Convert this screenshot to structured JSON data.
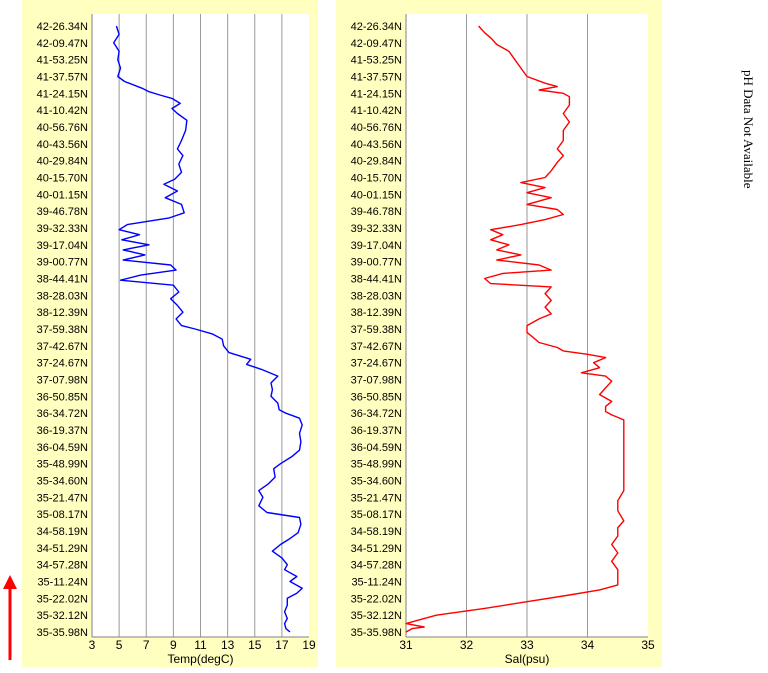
{
  "side_note": "pH Data Not Available",
  "colors": {
    "panel_bg": "#ffffc0",
    "plot_bg": "#ffffff",
    "grid": "#9a9a9a",
    "temp_line": "#0000ff",
    "sal_line": "#ff0000",
    "arrow": "#ff0000"
  },
  "chart_data": [
    {
      "type": "line",
      "orientation": "vertical-profile",
      "xlabel": "Temp(degC)",
      "xlim": [
        3,
        19
      ],
      "xticks": [
        "3",
        "5",
        "7",
        "9",
        "11",
        "13",
        "15",
        "17",
        "19"
      ],
      "y_labels": [
        "42-26.34N",
        "42-09.47N",
        "41-53.25N",
        "41-37.57N",
        "41-24.15N",
        "41-10.42N",
        "40-56.76N",
        "40-43.56N",
        "40-29.84N",
        "40-15.70N",
        "40-01.15N",
        "39-46.78N",
        "39-32.33N",
        "39-17.04N",
        "39-00.77N",
        "38-44.41N",
        "38-28.03N",
        "38-12.39N",
        "37-59.38N",
        "37-42.67N",
        "37-24.67N",
        "37-07.98N",
        "36-50.85N",
        "36-34.72N",
        "36-19.37N",
        "36-04.59N",
        "35-48.99N",
        "35-34.60N",
        "35-21.47N",
        "35-08.17N",
        "34-58.19N",
        "34-51.29N",
        "34-57.28N",
        "35-11.24N",
        "35-22.02N",
        "35-32.12N",
        "35-35.98N"
      ],
      "grid": "vertical",
      "series": [
        {
          "color": "#0000ff",
          "points": [
            [
              4.8,
              0
            ],
            [
              5.0,
              0.5
            ],
            [
              4.6,
              1.0
            ],
            [
              5.0,
              1.5
            ],
            [
              4.9,
              2.0
            ],
            [
              5.1,
              2.5
            ],
            [
              4.9,
              3.0
            ],
            [
              5.4,
              3.3
            ],
            [
              6.7,
              3.7
            ],
            [
              7.2,
              3.9
            ],
            [
              8.0,
              4.1
            ],
            [
              8.9,
              4.3
            ],
            [
              9.5,
              4.6
            ],
            [
              8.9,
              4.9
            ],
            [
              9.3,
              5.2
            ],
            [
              10.0,
              5.6
            ],
            [
              9.9,
              6.2
            ],
            [
              9.6,
              6.8
            ],
            [
              9.3,
              7.3
            ],
            [
              9.7,
              7.7
            ],
            [
              9.4,
              8.2
            ],
            [
              9.6,
              8.7
            ],
            [
              9.1,
              9.1
            ],
            [
              8.3,
              9.4
            ],
            [
              9.3,
              9.8
            ],
            [
              8.4,
              10.2
            ],
            [
              9.6,
              10.6
            ],
            [
              9.8,
              11.1
            ],
            [
              8.7,
              11.4
            ],
            [
              5.6,
              11.8
            ],
            [
              5.0,
              12.1
            ],
            [
              6.5,
              12.4
            ],
            [
              5.2,
              12.7
            ],
            [
              7.2,
              13.0
            ],
            [
              5.3,
              13.3
            ],
            [
              6.9,
              13.6
            ],
            [
              5.3,
              13.9
            ],
            [
              8.8,
              14.2
            ],
            [
              9.2,
              14.5
            ],
            [
              6.6,
              14.8
            ],
            [
              5.1,
              15.1
            ],
            [
              9.0,
              15.4
            ],
            [
              9.4,
              15.8
            ],
            [
              8.8,
              16.2
            ],
            [
              9.3,
              16.6
            ],
            [
              9.7,
              17.0
            ],
            [
              9.2,
              17.4
            ],
            [
              9.6,
              17.8
            ],
            [
              10.6,
              18.0
            ],
            [
              11.9,
              18.3
            ],
            [
              12.6,
              18.6
            ],
            [
              12.7,
              19.0
            ],
            [
              13.1,
              19.4
            ],
            [
              14.7,
              19.8
            ],
            [
              14.4,
              20.1
            ],
            [
              15.5,
              20.4
            ],
            [
              16.7,
              20.8
            ],
            [
              16.2,
              21.2
            ],
            [
              16.3,
              21.6
            ],
            [
              16.2,
              22.0
            ],
            [
              16.7,
              22.4
            ],
            [
              16.8,
              22.8
            ],
            [
              17.3,
              23.0
            ],
            [
              18.3,
              23.3
            ],
            [
              18.5,
              23.7
            ],
            [
              18.3,
              24.2
            ],
            [
              18.4,
              24.7
            ],
            [
              18.3,
              25.2
            ],
            [
              17.7,
              25.6
            ],
            [
              16.9,
              26.0
            ],
            [
              16.4,
              26.3
            ],
            [
              16.5,
              26.8
            ],
            [
              16.0,
              27.2
            ],
            [
              15.3,
              27.6
            ],
            [
              15.6,
              28.0
            ],
            [
              15.3,
              28.5
            ],
            [
              15.9,
              28.9
            ],
            [
              18.3,
              29.2
            ],
            [
              18.4,
              29.6
            ],
            [
              18.2,
              30.1
            ],
            [
              17.5,
              30.5
            ],
            [
              16.9,
              30.8
            ],
            [
              16.3,
              31.2
            ],
            [
              17.0,
              31.6
            ],
            [
              17.4,
              32.0
            ],
            [
              17.2,
              32.3
            ],
            [
              18.1,
              32.7
            ],
            [
              17.6,
              33.0
            ],
            [
              18.5,
              33.4
            ],
            [
              18.1,
              33.7
            ],
            [
              17.4,
              34.0
            ],
            [
              17.4,
              34.4
            ],
            [
              17.2,
              34.8
            ],
            [
              17.4,
              35.2
            ],
            [
              17.2,
              35.5
            ],
            [
              17.3,
              35.8
            ],
            [
              17.6,
              36.0
            ]
          ]
        }
      ]
    },
    {
      "type": "line",
      "orientation": "vertical-profile",
      "xlabel": "Sal(psu)",
      "xlim": [
        31,
        35
      ],
      "xticks": [
        "31",
        "32",
        "33",
        "34",
        "35"
      ],
      "y_labels": [
        "42-26.34N",
        "42-09.47N",
        "41-53.25N",
        "41-37.57N",
        "41-24.15N",
        "41-10.42N",
        "40-56.76N",
        "40-43.56N",
        "40-29.84N",
        "40-15.70N",
        "40-01.15N",
        "39-46.78N",
        "39-32.33N",
        "39-17.04N",
        "39-00.77N",
        "38-44.41N",
        "38-28.03N",
        "38-12.39N",
        "37-59.38N",
        "37-42.67N",
        "37-24.67N",
        "37-07.98N",
        "36-50.85N",
        "36-34.72N",
        "36-19.37N",
        "36-04.59N",
        "35-48.99N",
        "35-34.60N",
        "35-21.47N",
        "35-08.17N",
        "34-58.19N",
        "34-51.29N",
        "34-57.28N",
        "35-11.24N",
        "35-22.02N",
        "35-32.12N",
        "35-35.98N"
      ],
      "grid": "vertical",
      "series": [
        {
          "color": "#ff0000",
          "points": [
            [
              32.2,
              0
            ],
            [
              32.3,
              0.4
            ],
            [
              32.4,
              0.7
            ],
            [
              32.5,
              1.1
            ],
            [
              32.7,
              1.5
            ],
            [
              32.8,
              2.0
            ],
            [
              32.9,
              2.5
            ],
            [
              33.0,
              3.0
            ],
            [
              33.3,
              3.4
            ],
            [
              33.5,
              3.6
            ],
            [
              33.2,
              3.8
            ],
            [
              33.6,
              4.0
            ],
            [
              33.7,
              4.2
            ],
            [
              33.7,
              4.7
            ],
            [
              33.6,
              5.2
            ],
            [
              33.7,
              5.7
            ],
            [
              33.6,
              6.2
            ],
            [
              33.6,
              6.8
            ],
            [
              33.5,
              7.3
            ],
            [
              33.6,
              7.7
            ],
            [
              33.5,
              8.1
            ],
            [
              33.4,
              8.6
            ],
            [
              33.3,
              9.0
            ],
            [
              32.9,
              9.3
            ],
            [
              33.3,
              9.6
            ],
            [
              33.0,
              9.9
            ],
            [
              33.4,
              10.2
            ],
            [
              33.0,
              10.6
            ],
            [
              33.5,
              10.9
            ],
            [
              33.6,
              11.2
            ],
            [
              33.3,
              11.5
            ],
            [
              32.9,
              11.8
            ],
            [
              32.4,
              12.1
            ],
            [
              32.6,
              12.4
            ],
            [
              32.4,
              12.7
            ],
            [
              32.7,
              13.0
            ],
            [
              32.5,
              13.3
            ],
            [
              32.9,
              13.6
            ],
            [
              32.5,
              13.9
            ],
            [
              33.2,
              14.2
            ],
            [
              33.4,
              14.5
            ],
            [
              32.6,
              14.7
            ],
            [
              32.3,
              15.0
            ],
            [
              32.4,
              15.3
            ],
            [
              33.4,
              15.5
            ],
            [
              33.3,
              15.9
            ],
            [
              33.4,
              16.3
            ],
            [
              33.3,
              16.7
            ],
            [
              33.4,
              17.1
            ],
            [
              33.2,
              17.4
            ],
            [
              33.0,
              17.8
            ],
            [
              33.0,
              18.2
            ],
            [
              33.1,
              18.5
            ],
            [
              33.2,
              18.8
            ],
            [
              33.5,
              19.1
            ],
            [
              33.6,
              19.3
            ],
            [
              34.0,
              19.5
            ],
            [
              34.3,
              19.7
            ],
            [
              34.1,
              20.0
            ],
            [
              34.2,
              20.3
            ],
            [
              33.9,
              20.6
            ],
            [
              34.3,
              20.8
            ],
            [
              34.4,
              21.1
            ],
            [
              34.3,
              21.5
            ],
            [
              34.2,
              21.9
            ],
            [
              34.4,
              22.3
            ],
            [
              34.3,
              22.6
            ],
            [
              34.3,
              22.9
            ],
            [
              34.4,
              23.1
            ],
            [
              34.6,
              23.4
            ],
            [
              34.6,
              24.0
            ],
            [
              34.6,
              24.6
            ],
            [
              34.6,
              25.2
            ],
            [
              34.6,
              25.8
            ],
            [
              34.6,
              26.4
            ],
            [
              34.6,
              27.0
            ],
            [
              34.6,
              27.6
            ],
            [
              34.5,
              28.2
            ],
            [
              34.5,
              28.8
            ],
            [
              34.6,
              29.4
            ],
            [
              34.5,
              29.8
            ],
            [
              34.5,
              30.3
            ],
            [
              34.4,
              30.8
            ],
            [
              34.5,
              31.3
            ],
            [
              34.4,
              31.8
            ],
            [
              34.5,
              32.3
            ],
            [
              34.5,
              32.8
            ],
            [
              34.5,
              33.2
            ],
            [
              34.2,
              33.5
            ],
            [
              33.7,
              33.8
            ],
            [
              33.0,
              34.2
            ],
            [
              32.3,
              34.6
            ],
            [
              31.9,
              34.8
            ],
            [
              31.5,
              35.0
            ],
            [
              31.2,
              35.3
            ],
            [
              31.0,
              35.5
            ],
            [
              31.3,
              35.7
            ],
            [
              31.1,
              35.8
            ],
            [
              31.0,
              36.0
            ]
          ]
        }
      ]
    }
  ]
}
